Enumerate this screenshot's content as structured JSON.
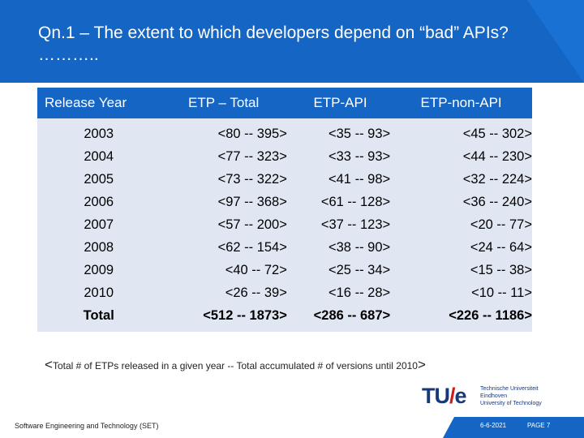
{
  "slide": {
    "title": "Qn.1 – The extent to which developers depend on “bad” APIs? ……….."
  },
  "table": {
    "headers": [
      "Release Year",
      "ETP – Total",
      "ETP-API",
      "ETP-non-API"
    ],
    "rows": [
      [
        "2003",
        "<80 -- 395>",
        "<35 -- 93>",
        "<45 -- 302>"
      ],
      [
        "2004",
        "<77 -- 323>",
        "<33 -- 93>",
        "<44 -- 230>"
      ],
      [
        "2005",
        "<73 -- 322>",
        "<41 -- 98>",
        "<32 -- 224>"
      ],
      [
        "2006",
        "<97 -- 368>",
        "<61 -- 128>",
        "<36 -- 240>"
      ],
      [
        "2007",
        "<57 -- 200>",
        "<37 -- 123>",
        "<20 -- 77>"
      ],
      [
        "2008",
        "<62 -- 154>",
        "<38 -- 90>",
        "<24 -- 64>"
      ],
      [
        "2009",
        "<40 -- 72>",
        "<25 -- 34>",
        "<15 -- 38>"
      ],
      [
        "2010",
        "<26 -- 39>",
        "<16 -- 28>",
        "<10 -- 11>"
      ],
      [
        "Total",
        "<512 -- 1873>",
        "<286 -- 687>",
        "<226 -- 1186>"
      ]
    ]
  },
  "footnote": {
    "open": "<",
    "text": "Total # of ETPs released in a given year -- Total accumulated # of versions until 2010",
    "close": ">"
  },
  "logo": {
    "mark_left": "TU",
    "mark_slash": "/",
    "mark_right": "e",
    "line1": "Technische Universiteit",
    "line2": "Eindhoven",
    "line3": "University of Technology"
  },
  "footer": {
    "left": "Software Engineering and Technology (SET)",
    "date": "6-6-2021",
    "page": "PAGE 7"
  },
  "colors": {
    "header_blue": "#1566c4",
    "table_row_bg": "#e1e7f2",
    "logo_navy": "#17397a",
    "logo_red": "#d11a1a"
  }
}
